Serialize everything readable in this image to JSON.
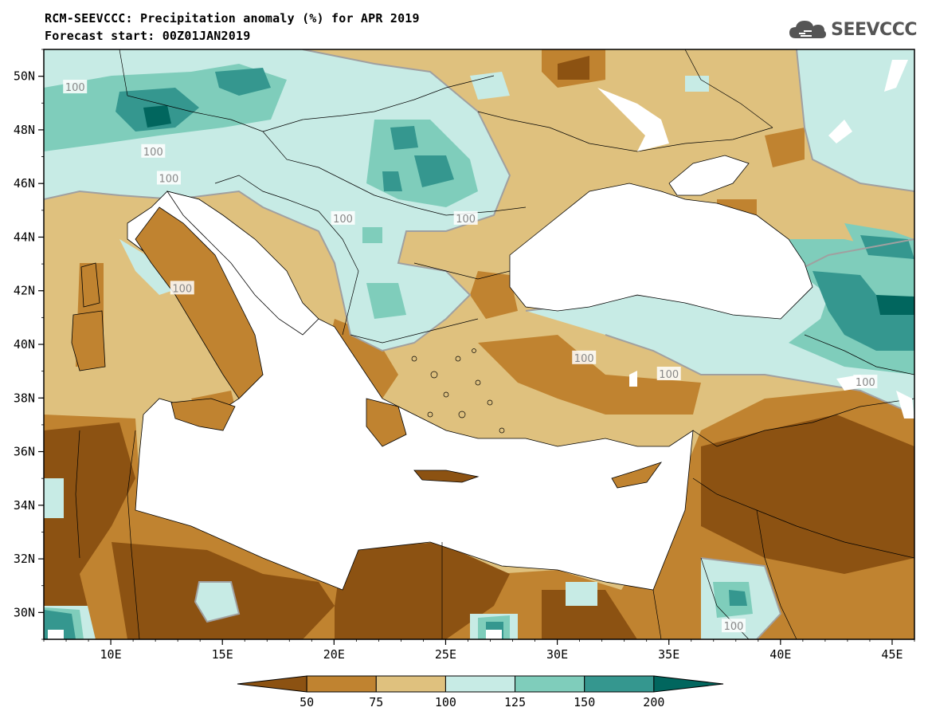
{
  "header": {
    "title_line1": "RCM-SEEVCCC: Precipitation anomaly (%) for APR 2019",
    "title_line2": "Forecast start: 00Z01JAN2019",
    "logo_text": "SEEVCCC"
  },
  "map": {
    "lon_range": [
      7,
      46
    ],
    "lat_range": [
      29,
      51
    ],
    "x_ticks": [
      "10E",
      "15E",
      "20E",
      "25E",
      "30E",
      "35E",
      "40E",
      "45E"
    ],
    "x_tick_values": [
      10,
      15,
      20,
      25,
      30,
      35,
      40,
      45
    ],
    "y_ticks": [
      "50N",
      "48N",
      "46N",
      "44N",
      "42N",
      "40N",
      "38N",
      "36N",
      "34N",
      "32N",
      "30N"
    ],
    "y_tick_values": [
      50,
      48,
      46,
      44,
      42,
      40,
      38,
      36,
      34,
      32,
      30
    ],
    "contour_labels": [
      {
        "text": "100",
        "lon": 8.4,
        "lat": 49.6
      },
      {
        "text": "100",
        "lon": 11.9,
        "lat": 47.2
      },
      {
        "text": "100",
        "lon": 12.6,
        "lat": 46.2
      },
      {
        "text": "100",
        "lon": 13.2,
        "lat": 42.1
      },
      {
        "text": "100",
        "lon": 20.4,
        "lat": 44.7
      },
      {
        "text": "100",
        "lon": 25.9,
        "lat": 44.7
      },
      {
        "text": "100",
        "lon": 31.2,
        "lat": 39.5
      },
      {
        "text": "100",
        "lon": 35.0,
        "lat": 38.9
      },
      {
        "text": "100",
        "lon": 43.8,
        "lat": 38.6
      },
      {
        "text": "100",
        "lon": 37.9,
        "lat": 29.5
      }
    ]
  },
  "colorbar": {
    "levels": [
      "50",
      "75",
      "100",
      "125",
      "150",
      "200"
    ],
    "colors": [
      "#8c5212",
      "#c08330",
      "#dfc17e",
      "#c7ebe5",
      "#7fcdbb",
      "#35978f",
      "#01665e"
    ]
  },
  "palette": {
    "ocean": "#ffffff",
    "c_lt50": "#8c5212",
    "c_50_75": "#c08330",
    "c_75_100": "#dfc17e",
    "c_100_125": "#c7ebe5",
    "c_125_150": "#7fcdbb",
    "c_150_200": "#35978f",
    "c_gt200": "#01665e"
  }
}
